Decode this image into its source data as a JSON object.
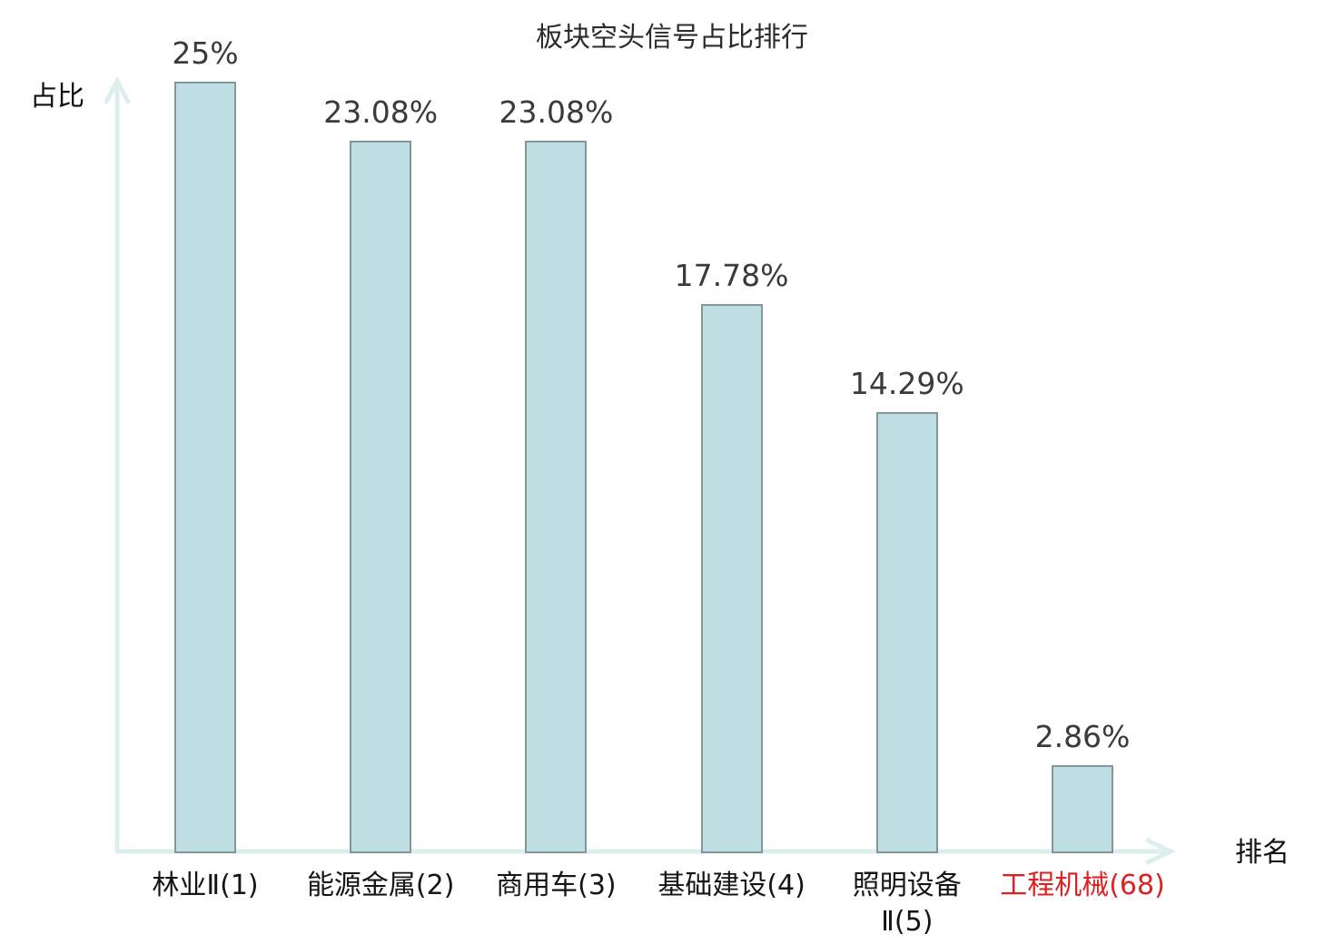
{
  "page": {
    "background": "#ffffff"
  },
  "colors": {
    "bar_fill": "#bfdfe3",
    "bar_border": "#82979c",
    "axis": "#ddefec",
    "value_label": "#3a3a3a",
    "category_label": "#151515",
    "highlight_category": "#dc2121",
    "title": "#2b2b2b"
  },
  "chart_data": {
    "type": "bar",
    "title": "板块空头信号占比排行",
    "xlabel": "排名",
    "ylabel": "占比",
    "ylim": [
      0,
      26
    ],
    "grid": false,
    "legend": "none",
    "axis_style": "arrow-ends, no tick marks, no tick labels",
    "categories": [
      "林业Ⅱ(1)",
      "能源金属(2)",
      "商用车(3)",
      "基础建设(4)",
      "照明设备\nⅡ(5)",
      "工程机械(68)"
    ],
    "values": [
      25,
      23.08,
      23.08,
      17.78,
      14.29,
      2.86
    ],
    "value_labels": [
      "25%",
      "23.08%",
      "23.08%",
      "17.78%",
      "14.29%",
      "2.86%"
    ],
    "category_highlight": [
      false,
      false,
      false,
      false,
      false,
      true
    ]
  }
}
